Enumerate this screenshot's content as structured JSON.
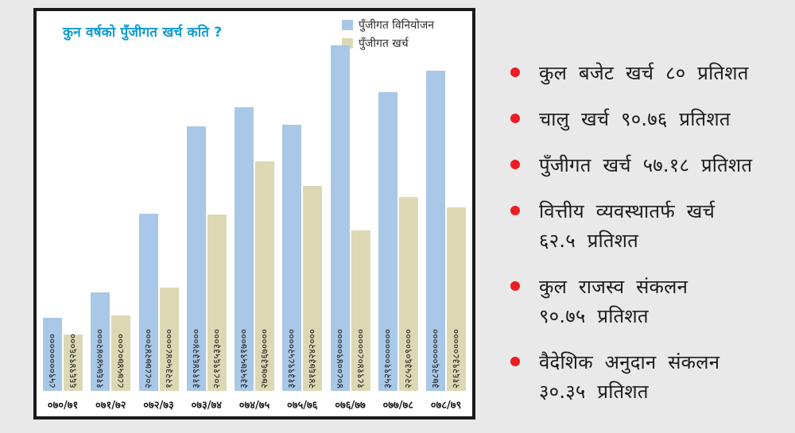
{
  "background_color": "#e9e9e9",
  "chart": {
    "title": "कुन वर्षको पुँजीगत खर्च कति ?",
    "title_color": "#0d9ad6",
    "border_color": "#1b1b1b",
    "legend": [
      {
        "label": "पुँजीगत विनियोजन",
        "color": "#a9c7e6"
      },
      {
        "label": "पुँजीगत खर्च",
        "color": "#ddd8b4"
      }
    ]
  },
  "chart_data": {
    "type": "bar",
    "title": "कुन वर्षको पुँजीगत खर्च कति ?",
    "categories": [
      "०७०/७१",
      "०७१/७२",
      "०७२/७३",
      "०७३/७४",
      "०७४/७५",
      "०७५/७६",
      "०७६/७७",
      "०७७/७८",
      "०७८/७९"
    ],
    "series": [
      {
        "name": "पुँजीगत विनियोजन",
        "color": "#a9c7e6",
        "values": [
          85900000000,
          116754042000,
          208877242000,
          311946324000,
          335175917000,
          313998520000,
          408004900000,
          352910000000,
          378260000000
        ]
      },
      {
        "name": "पुँजीगत खर्च",
        "color": "#ddd8b4",
        "values": [
          66694926000,
          88754708000,
          122350480000,
          208196533000,
          270763670000,
          241673242000,
          189140800000,
          228536090000,
          216293800000
        ]
      }
    ],
    "ylim": [
      0,
      408004900000
    ],
    "grid": false,
    "legend_position": "top-right",
    "value_label_script": "devanagari",
    "value_label_rotation": 90
  },
  "side_panel": {
    "bullet_color": "#ec1c24",
    "items": [
      {
        "lines": [
          "कुल बजेट खर्च ८० प्रतिशत"
        ]
      },
      {
        "lines": [
          "चालु खर्च ९०.७६ प्रतिशत"
        ]
      },
      {
        "lines": [
          "पुँजीगत खर्च ५७.१८ प्रतिशत"
        ]
      },
      {
        "lines": [
          "वित्तीय व्यवस्थातर्फ खर्च",
          "६२.५ प्रतिशत"
        ]
      },
      {
        "lines": [
          "कुल राजस्व संकलन",
          "९०.७५ प्रतिशत"
        ]
      },
      {
        "lines": [
          "वैदेशिक अनुदान संकलन",
          "३०.३५ प्रतिशत"
        ]
      }
    ]
  }
}
